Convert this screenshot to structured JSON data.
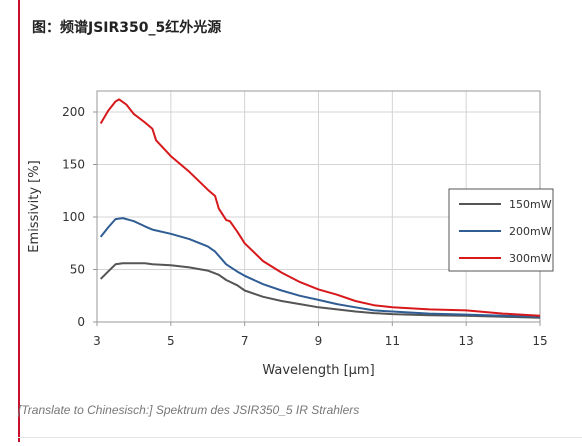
{
  "heading": "图：频谱JSIR350_5红外光源",
  "caption": "[Translate to Chinesisch:] Spektrum des JSIR350_5 IR Strahlers",
  "chart_data": {
    "type": "line",
    "title": "",
    "xlabel": "Wavelength [µm]",
    "ylabel": "Emissivity [%]",
    "xlim": [
      3,
      15
    ],
    "ylim": [
      0,
      220
    ],
    "xticks": [
      3,
      5,
      7,
      9,
      11,
      13,
      15
    ],
    "yticks": [
      0,
      50,
      100,
      150,
      200
    ],
    "grid": true,
    "legend_position": "right",
    "series": [
      {
        "name": "150mW",
        "color": "#555555",
        "points": [
          [
            3.1,
            41
          ],
          [
            3.3,
            48
          ],
          [
            3.5,
            55
          ],
          [
            3.7,
            56
          ],
          [
            4.0,
            56
          ],
          [
            4.3,
            56
          ],
          [
            4.5,
            55
          ],
          [
            5.0,
            54
          ],
          [
            5.5,
            52
          ],
          [
            6.0,
            49
          ],
          [
            6.3,
            45
          ],
          [
            6.5,
            40
          ],
          [
            6.8,
            35
          ],
          [
            7.0,
            30
          ],
          [
            7.5,
            24
          ],
          [
            8.0,
            20
          ],
          [
            8.5,
            17
          ],
          [
            9.0,
            14
          ],
          [
            9.5,
            12
          ],
          [
            10.0,
            10
          ],
          [
            10.5,
            8.5
          ],
          [
            11.0,
            7.5
          ],
          [
            12.0,
            6.5
          ],
          [
            13.0,
            6
          ],
          [
            14.0,
            5
          ],
          [
            15.0,
            4
          ]
        ]
      },
      {
        "name": "200mW",
        "color": "#2f5d94",
        "points": [
          [
            3.1,
            81
          ],
          [
            3.3,
            90
          ],
          [
            3.5,
            98
          ],
          [
            3.7,
            99
          ],
          [
            4.0,
            96
          ],
          [
            4.3,
            91
          ],
          [
            4.5,
            88
          ],
          [
            5.0,
            84
          ],
          [
            5.5,
            79
          ],
          [
            6.0,
            72
          ],
          [
            6.2,
            67
          ],
          [
            6.5,
            55
          ],
          [
            6.8,
            48
          ],
          [
            7.0,
            44
          ],
          [
            7.5,
            36
          ],
          [
            8.0,
            30
          ],
          [
            8.5,
            25
          ],
          [
            9.0,
            21
          ],
          [
            9.5,
            17
          ],
          [
            10.0,
            14
          ],
          [
            10.5,
            11
          ],
          [
            11.0,
            10
          ],
          [
            12.0,
            8
          ],
          [
            13.0,
            7
          ],
          [
            14.0,
            6
          ],
          [
            15.0,
            5
          ]
        ]
      },
      {
        "name": "300mW",
        "color": "#d7191c",
        "points": [
          [
            3.1,
            189
          ],
          [
            3.3,
            201
          ],
          [
            3.5,
            210
          ],
          [
            3.6,
            212
          ],
          [
            3.8,
            207
          ],
          [
            4.0,
            198
          ],
          [
            4.3,
            190
          ],
          [
            4.5,
            184
          ],
          [
            4.6,
            173
          ],
          [
            5.0,
            158
          ],
          [
            5.5,
            143
          ],
          [
            6.0,
            126
          ],
          [
            6.2,
            120
          ],
          [
            6.3,
            108
          ],
          [
            6.5,
            97
          ],
          [
            6.6,
            96
          ],
          [
            6.8,
            86
          ],
          [
            7.0,
            75
          ],
          [
            7.5,
            58
          ],
          [
            8.0,
            47
          ],
          [
            8.5,
            38
          ],
          [
            9.0,
            31
          ],
          [
            9.5,
            26
          ],
          [
            10.0,
            20
          ],
          [
            10.5,
            16
          ],
          [
            11.0,
            14
          ],
          [
            12.0,
            12
          ],
          [
            13.0,
            11
          ],
          [
            14.0,
            8
          ],
          [
            15.0,
            6
          ]
        ]
      }
    ]
  }
}
